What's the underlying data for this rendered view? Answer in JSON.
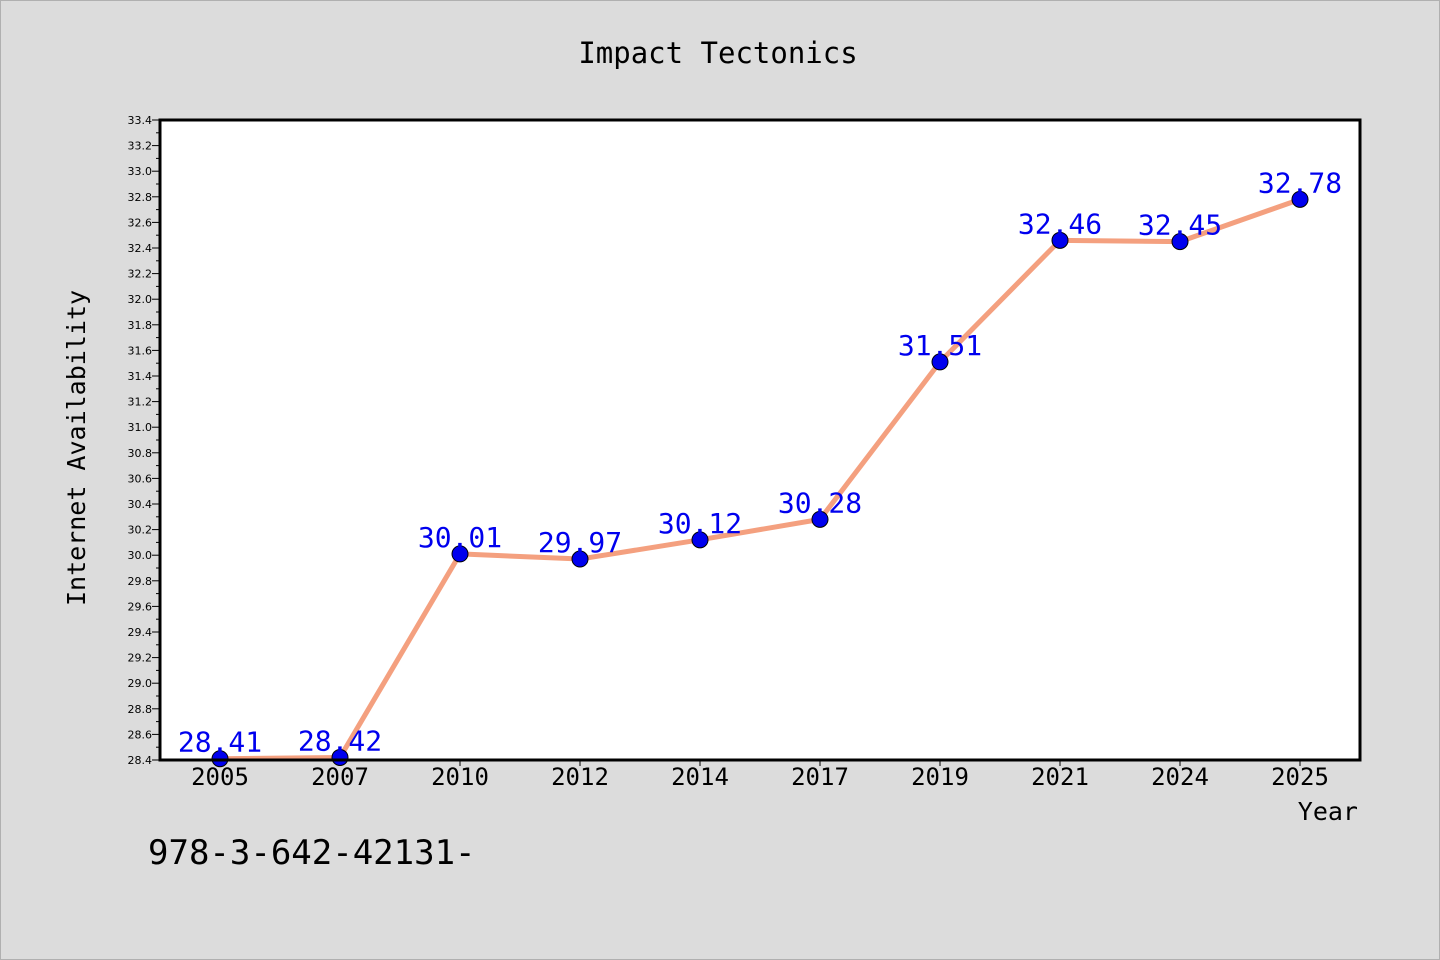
{
  "chart_data": {
    "type": "line",
    "title": "Impact Tectonics",
    "xlabel": "Year",
    "ylabel": "Internet Availability",
    "categories": [
      "2005",
      "2007",
      "2010",
      "2012",
      "2014",
      "2017",
      "2019",
      "2021",
      "2024",
      "2025"
    ],
    "values": [
      28.41,
      28.42,
      30.01,
      29.97,
      30.12,
      30.28,
      31.51,
      32.46,
      32.45,
      32.78
    ],
    "data_labels": [
      "28.41",
      "28.42",
      "30.01",
      "29.97",
      "30.12",
      "30.28",
      "31.51",
      "32.46",
      "32.45",
      "32.78"
    ],
    "ylim": [
      28.4,
      33.4
    ],
    "yticks": [
      "28.4",
      "28.6",
      "28.8",
      "29.0",
      "29.2",
      "29.4",
      "29.6",
      "29.8",
      "30.0",
      "30.2",
      "30.4",
      "30.6",
      "30.8",
      "31.0",
      "31.2",
      "31.4",
      "31.6",
      "31.8",
      "32.0",
      "32.2",
      "32.4",
      "32.6",
      "32.8",
      "33.0",
      "33.2",
      "33.4"
    ],
    "grid": false,
    "legend": "none",
    "colors": {
      "line": "#f4a07f",
      "marker": "#0000ee",
      "data_label": "#0000ee",
      "background": "#dcdcdc",
      "plot_area": "#ffffff"
    }
  },
  "footer_text": "978-3-642-42131-"
}
